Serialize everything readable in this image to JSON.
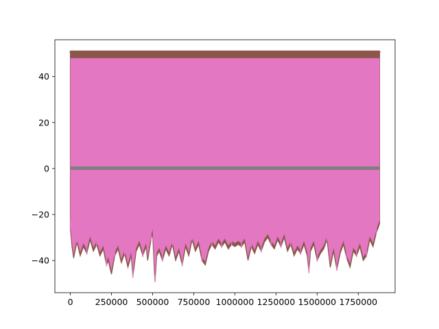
{
  "chart_data": {
    "type": "line",
    "title": "",
    "xlabel": "",
    "ylabel": "",
    "xlim": [
      -94000,
      1974000
    ],
    "ylim": [
      -54,
      56
    ],
    "x_ticks": [
      0,
      250000,
      500000,
      750000,
      1000000,
      1250000,
      1500000,
      1750000
    ],
    "x_tick_labels": [
      "0",
      "250000",
      "500000",
      "750000",
      "1000000",
      "1250000",
      "1500000",
      "1750000"
    ],
    "y_ticks": [
      -40,
      -20,
      0,
      20,
      40
    ],
    "y_tick_labels": [
      "−40",
      "−20",
      "0",
      "20",
      "40"
    ],
    "x_range": [
      0,
      1880000
    ],
    "grid": false,
    "legend": "none",
    "series": [
      {
        "color": "#8c564b",
        "upper": [
          51,
          51
        ],
        "lower_envelope": [
          [
            0,
            -26
          ],
          [
            10000,
            -34
          ],
          [
            20000,
            -39
          ],
          [
            40000,
            -32
          ],
          [
            60000,
            -38
          ],
          [
            80000,
            -34
          ],
          [
            100000,
            -37
          ],
          [
            120000,
            -31
          ],
          [
            140000,
            -36
          ],
          [
            160000,
            -33
          ],
          [
            180000,
            -38
          ],
          [
            200000,
            -35
          ],
          [
            220000,
            -42
          ],
          [
            230000,
            -40
          ],
          [
            250000,
            -46
          ],
          [
            270000,
            -38
          ],
          [
            290000,
            -35
          ],
          [
            310000,
            -41
          ],
          [
            330000,
            -37
          ],
          [
            350000,
            -43
          ],
          [
            370000,
            -38
          ],
          [
            380000,
            -47
          ],
          [
            400000,
            -36
          ],
          [
            420000,
            -33
          ],
          [
            440000,
            -38
          ],
          [
            460000,
            -34
          ],
          [
            470000,
            -40
          ],
          [
            490000,
            -31
          ],
          [
            500000,
            -28
          ],
          [
            510000,
            -44
          ],
          [
            515000,
            -49
          ],
          [
            525000,
            -38
          ],
          [
            540000,
            -36
          ],
          [
            560000,
            -40
          ],
          [
            580000,
            -35
          ],
          [
            600000,
            -38
          ],
          [
            620000,
            -33
          ],
          [
            640000,
            -40
          ],
          [
            660000,
            -36
          ],
          [
            680000,
            -42
          ],
          [
            700000,
            -34
          ],
          [
            720000,
            -38
          ],
          [
            740000,
            -31
          ],
          [
            760000,
            -36
          ],
          [
            780000,
            -33
          ],
          [
            800000,
            -40
          ],
          [
            820000,
            -42
          ],
          [
            840000,
            -36
          ],
          [
            860000,
            -33
          ],
          [
            880000,
            -35
          ],
          [
            900000,
            -32
          ],
          [
            920000,
            -34
          ],
          [
            940000,
            -32
          ],
          [
            960000,
            -35
          ],
          [
            980000,
            -33
          ],
          [
            1000000,
            -34
          ],
          [
            1020000,
            -33
          ],
          [
            1040000,
            -34
          ],
          [
            1060000,
            -32
          ],
          [
            1080000,
            -40
          ],
          [
            1100000,
            -34
          ],
          [
            1120000,
            -37
          ],
          [
            1140000,
            -33
          ],
          [
            1160000,
            -36
          ],
          [
            1180000,
            -32
          ],
          [
            1200000,
            -30
          ],
          [
            1220000,
            -33
          ],
          [
            1240000,
            -35
          ],
          [
            1260000,
            -31
          ],
          [
            1280000,
            -34
          ],
          [
            1300000,
            -30
          ],
          [
            1320000,
            -36
          ],
          [
            1340000,
            -33
          ],
          [
            1360000,
            -38
          ],
          [
            1380000,
            -35
          ],
          [
            1400000,
            -37
          ],
          [
            1420000,
            -33
          ],
          [
            1440000,
            -38
          ],
          [
            1450000,
            -45
          ],
          [
            1460000,
            -36
          ],
          [
            1480000,
            -33
          ],
          [
            1500000,
            -40
          ],
          [
            1520000,
            -37
          ],
          [
            1540000,
            -35
          ],
          [
            1560000,
            -31
          ],
          [
            1580000,
            -43
          ],
          [
            1600000,
            -36
          ],
          [
            1620000,
            -44
          ],
          [
            1640000,
            -37
          ],
          [
            1660000,
            -33
          ],
          [
            1680000,
            -39
          ],
          [
            1700000,
            -43
          ],
          [
            1720000,
            -36
          ],
          [
            1740000,
            -38
          ],
          [
            1760000,
            -34
          ],
          [
            1780000,
            -40
          ],
          [
            1800000,
            -38
          ],
          [
            1820000,
            -31
          ],
          [
            1840000,
            -34
          ],
          [
            1860000,
            -28
          ],
          [
            1880000,
            -24
          ]
        ]
      },
      {
        "color": "#e377c2",
        "upper": [
          48,
          48
        ],
        "lower_offset": 1.5
      },
      {
        "color": "#7f7f7f",
        "band": [
          -0.6,
          0.9
        ]
      }
    ]
  }
}
